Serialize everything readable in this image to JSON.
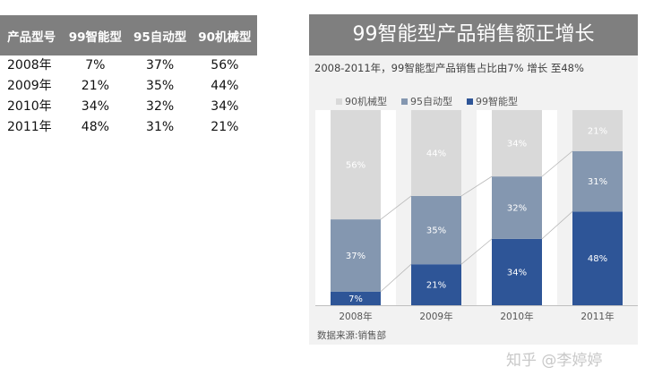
{
  "table": {
    "headers": [
      "产品型号",
      "99智能型",
      "95自动型",
      "90机械型"
    ],
    "rows": [
      [
        "2008年",
        "7%",
        "37%",
        "56%"
      ],
      [
        "2009年",
        "21%",
        "35%",
        "44%"
      ],
      [
        "2010年",
        "34%",
        "32%",
        "34%"
      ],
      [
        "2011年",
        "48%",
        "31%",
        "21%"
      ]
    ]
  },
  "chart_data": {
    "type": "bar",
    "stacked": true,
    "percent_stacked": true,
    "title": "99智能型产品销售额正增长",
    "subtitle": "2008-2011年，99智能型产品销售占比由7% 增长 至48%",
    "categories": [
      "2008年",
      "2009年",
      "2010年",
      "2011年"
    ],
    "series": [
      {
        "name": "99智能型",
        "color": "#2e5597",
        "values": [
          7,
          21,
          34,
          48
        ]
      },
      {
        "name": "95自动型",
        "color": "#8497b0",
        "values": [
          37,
          35,
          32,
          31
        ]
      },
      {
        "name": "90机械型",
        "color": "#d9d9d9",
        "values": [
          56,
          44,
          34,
          21
        ]
      }
    ],
    "legend_order": [
      "90机械型",
      "95自动型",
      "99智能型"
    ],
    "ylim": [
      0,
      100
    ],
    "source": "数据来源:销售部"
  },
  "watermark": "知乎 @李婷婷"
}
